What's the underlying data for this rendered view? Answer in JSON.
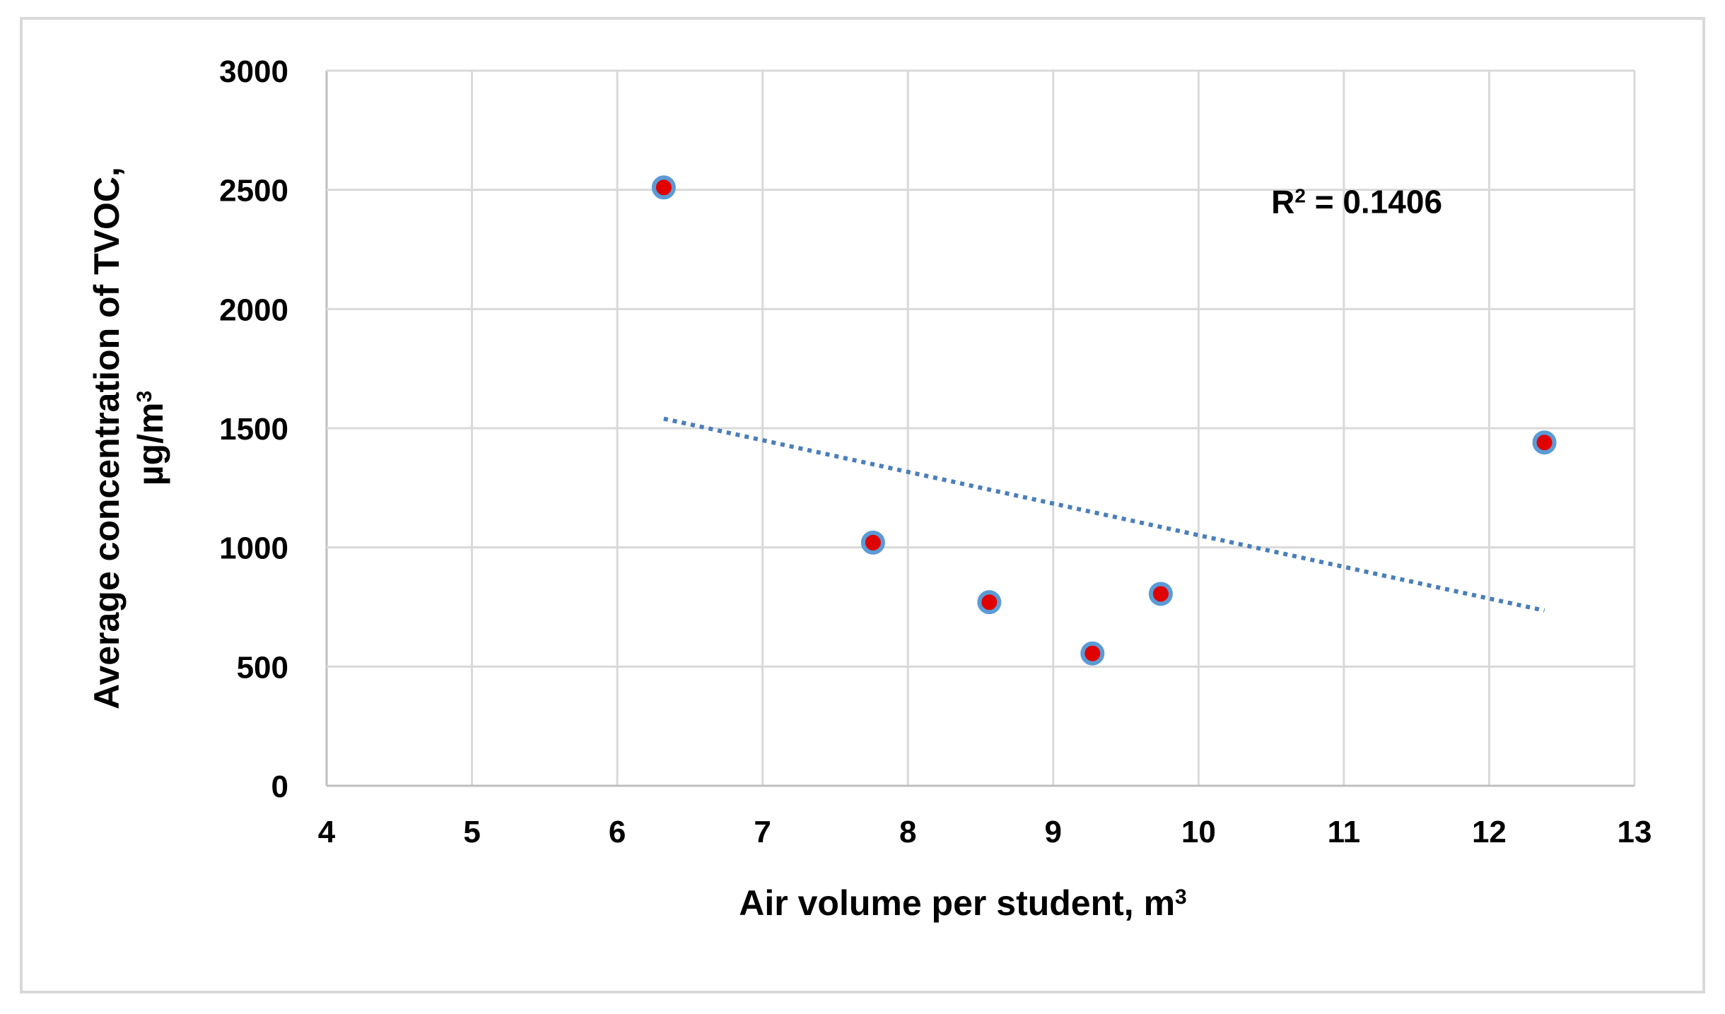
{
  "chart_data": {
    "type": "scatter",
    "title": "",
    "xlabel": "Air volume per student, m",
    "xlabel_sup": "3",
    "ylabel_line1": "Average concentration of TVOC,",
    "ylabel_line2": "µg/m",
    "ylabel_sup": "3",
    "xlim": [
      4,
      13
    ],
    "ylim": [
      0,
      3000
    ],
    "x_ticks": [
      4,
      5,
      6,
      7,
      8,
      9,
      10,
      11,
      12,
      13
    ],
    "y_ticks": [
      0,
      500,
      1000,
      1500,
      2000,
      2500,
      3000
    ],
    "grid": true,
    "legend": "none",
    "points": [
      {
        "x": 6.32,
        "y": 2510
      },
      {
        "x": 7.76,
        "y": 1020
      },
      {
        "x": 8.56,
        "y": 770
      },
      {
        "x": 9.27,
        "y": 555
      },
      {
        "x": 9.74,
        "y": 805
      },
      {
        "x": 12.38,
        "y": 1440
      }
    ],
    "trendline": {
      "type": "linear",
      "style": "dotted",
      "start": {
        "x": 6.32,
        "y": 1540
      },
      "end": {
        "x": 12.38,
        "y": 735
      }
    },
    "annotation": {
      "prefix": "R",
      "sup": "2",
      "text": " = 0.1406",
      "x": 10.5,
      "y": 2450
    },
    "colors": {
      "marker_fill": "#e00000",
      "marker_edge": "#5b9bd5",
      "trendline": "#4a7ebb",
      "grid": "#d9d9d9",
      "axis": "#bfbfbf"
    }
  }
}
